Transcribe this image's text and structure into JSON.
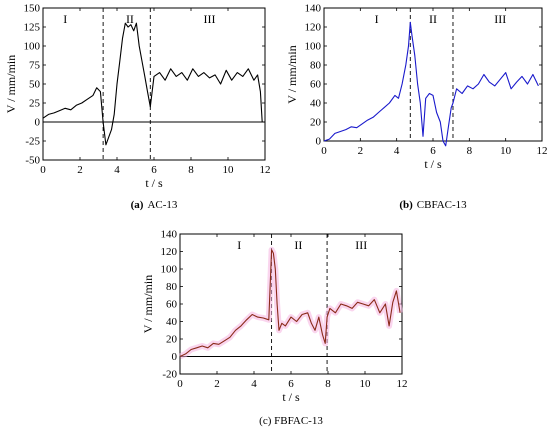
{
  "chart_data": [
    {
      "type": "line",
      "caption_letter": "(a)",
      "caption_text": "AC-13",
      "xlabel": "t / s",
      "ylabel": "V / mm/min",
      "xlim": [
        0,
        12
      ],
      "ylim": [
        -50,
        150
      ],
      "xticks": [
        0,
        2,
        4,
        6,
        8,
        10,
        12
      ],
      "yticks": [
        -50,
        -25,
        0,
        25,
        50,
        75,
        100,
        125,
        150
      ],
      "zero_line": true,
      "phase_boundaries": [
        3.25,
        5.8
      ],
      "phase_labels": [
        {
          "label": "I",
          "x": 1.2
        },
        {
          "label": "II",
          "x": 4.7
        },
        {
          "label": "III",
          "x": 9.0
        }
      ],
      "color": "#000000",
      "series": [
        {
          "x": [
            0,
            0.3,
            0.6,
            0.9,
            1.2,
            1.5,
            1.8,
            2.1,
            2.4,
            2.7,
            2.9,
            3.1,
            3.25,
            3.4,
            3.55,
            3.7,
            3.85,
            4.0,
            4.15,
            4.3,
            4.45,
            4.6,
            4.75,
            4.9,
            5.05,
            5.2,
            5.35,
            5.5,
            5.65,
            5.8,
            6.0,
            6.3,
            6.6,
            6.9,
            7.2,
            7.5,
            7.8,
            8.1,
            8.4,
            8.7,
            9.0,
            9.3,
            9.6,
            9.9,
            10.2,
            10.5,
            10.8,
            11.1,
            11.4,
            11.6,
            11.75,
            11.85
          ],
          "y": [
            5,
            10,
            12,
            15,
            18,
            16,
            22,
            25,
            30,
            35,
            45,
            40,
            0,
            -30,
            -20,
            -10,
            10,
            50,
            80,
            110,
            130,
            125,
            128,
            120,
            130,
            100,
            80,
            60,
            40,
            20,
            60,
            65,
            55,
            70,
            60,
            65,
            55,
            70,
            60,
            65,
            58,
            62,
            50,
            68,
            55,
            65,
            60,
            70,
            55,
            62,
            40,
            0
          ]
        }
      ]
    },
    {
      "type": "line",
      "caption_letter": "(b)",
      "caption_text": "CBFAC-13",
      "xlabel": "t / s",
      "ylabel": "V / mm/min",
      "xlim": [
        0,
        12
      ],
      "ylim": [
        0,
        140
      ],
      "xticks": [
        0,
        2,
        4,
        6,
        8,
        10,
        12
      ],
      "yticks": [
        0,
        20,
        40,
        60,
        80,
        100,
        120,
        140
      ],
      "zero_line": false,
      "phase_boundaries": [
        4.75,
        7.1
      ],
      "phase_labels": [
        {
          "label": "I",
          "x": 2.9
        },
        {
          "label": "II",
          "x": 6.0
        },
        {
          "label": "III",
          "x": 9.7
        }
      ],
      "color": "#1a1acc",
      "series": [
        {
          "x": [
            0,
            0.3,
            0.6,
            0.9,
            1.2,
            1.5,
            1.8,
            2.1,
            2.4,
            2.7,
            3.0,
            3.3,
            3.6,
            3.9,
            4.1,
            4.3,
            4.5,
            4.65,
            4.75,
            4.85,
            5.0,
            5.15,
            5.3,
            5.45,
            5.6,
            5.8,
            6.0,
            6.2,
            6.4,
            6.55,
            6.7,
            6.85,
            7.0,
            7.1,
            7.3,
            7.6,
            7.9,
            8.2,
            8.5,
            8.8,
            9.1,
            9.4,
            9.7,
            10.0,
            10.3,
            10.6,
            10.9,
            11.2,
            11.5,
            11.8
          ],
          "y": [
            0,
            2,
            8,
            10,
            12,
            15,
            14,
            18,
            22,
            25,
            30,
            35,
            40,
            48,
            45,
            60,
            80,
            100,
            125,
            110,
            90,
            60,
            40,
            5,
            45,
            50,
            48,
            30,
            20,
            0,
            -5,
            15,
            35,
            40,
            55,
            50,
            58,
            55,
            60,
            70,
            62,
            58,
            65,
            72,
            55,
            62,
            68,
            60,
            70,
            58
          ]
        }
      ]
    },
    {
      "type": "line",
      "caption_letter": "",
      "caption_text": "(c) FBFAC-13",
      "xlabel": "t / s",
      "ylabel": "V / mm/min",
      "xlim": [
        0,
        12
      ],
      "ylim": [
        -20,
        140
      ],
      "xticks": [
        0,
        2,
        4,
        6,
        8,
        10,
        12
      ],
      "yticks": [
        -20,
        0,
        20,
        40,
        60,
        80,
        100,
        120,
        140
      ],
      "zero_line": true,
      "phase_boundaries": [
        4.95,
        7.95
      ],
      "phase_labels": [
        {
          "label": "I",
          "x": 3.2
        },
        {
          "label": "II",
          "x": 6.4
        },
        {
          "label": "III",
          "x": 9.8
        }
      ],
      "color": "#8b2a1a",
      "halo": "#f5b3e0",
      "series": [
        {
          "x": [
            0,
            0.3,
            0.6,
            0.9,
            1.2,
            1.5,
            1.8,
            2.1,
            2.4,
            2.7,
            3.0,
            3.3,
            3.6,
            3.9,
            4.2,
            4.5,
            4.8,
            4.95,
            5.05,
            5.15,
            5.25,
            5.35,
            5.5,
            5.7,
            6.0,
            6.3,
            6.6,
            6.9,
            7.1,
            7.3,
            7.5,
            7.7,
            7.85,
            7.95,
            8.1,
            8.4,
            8.7,
            9.0,
            9.3,
            9.6,
            9.9,
            10.2,
            10.5,
            10.8,
            11.1,
            11.3,
            11.5,
            11.7,
            11.9
          ],
          "y": [
            0,
            3,
            8,
            10,
            12,
            10,
            15,
            14,
            18,
            22,
            30,
            35,
            42,
            48,
            45,
            44,
            42,
            122,
            118,
            100,
            60,
            30,
            38,
            35,
            45,
            40,
            48,
            50,
            38,
            30,
            45,
            25,
            15,
            45,
            55,
            50,
            60,
            58,
            55,
            62,
            60,
            58,
            65,
            50,
            60,
            35,
            62,
            75,
            50
          ]
        }
      ]
    }
  ]
}
